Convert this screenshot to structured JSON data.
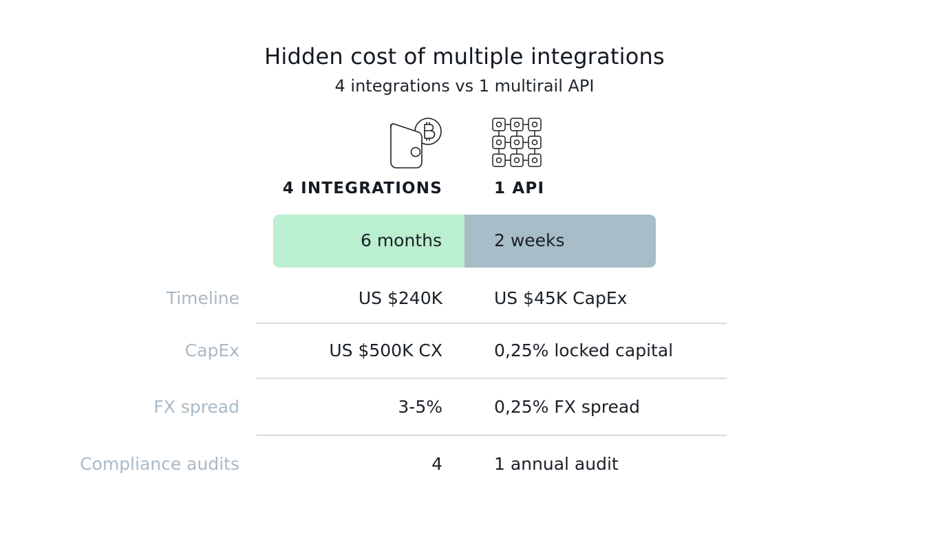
{
  "header": {
    "title": "Hidden cost of multiple integrations",
    "subtitle": "4 integrations vs 1 multirail API"
  },
  "columns": {
    "left": {
      "icon": "bitcoin-wallet-icon",
      "heading": "4 INTEGRATIONS"
    },
    "right": {
      "icon": "api-grid-icon",
      "heading": "1 API"
    }
  },
  "timebar": {
    "left_label": "6 months",
    "right_label": "2 weeks",
    "left_color": "#baefcf",
    "right_color": "#a7bdc8"
  },
  "rows": [
    {
      "label": "Timeline",
      "left": "US $240K",
      "right": "US $45K CapEx"
    },
    {
      "label": "CapEx",
      "left": "US $500K CX",
      "right": "0,25% locked capital"
    },
    {
      "label": "FX spread",
      "left": "3-5%",
      "right": "0,25% FX spread"
    },
    {
      "label": "Compliance audits",
      "left": "4",
      "right": "1 annual audit"
    }
  ],
  "colors": {
    "label_text": "#a9bac6",
    "divider": "#d3dde3",
    "body_text": "#1a2027"
  }
}
